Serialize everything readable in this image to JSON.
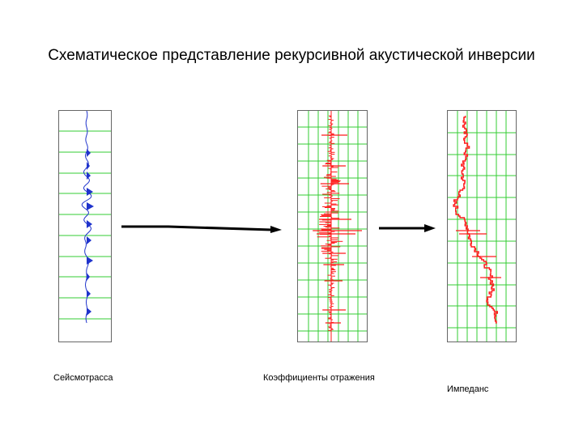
{
  "title": "Схематическое представление рекурсивной акустической инверсии",
  "captions": {
    "seismic": "Сейсмотрасса",
    "reflectivity": "Коэффициенты отражения",
    "impedance": "Импеданс"
  },
  "colors": {
    "grid": "#33cc33",
    "seismic": "#1f33cc",
    "reflectivity": "#ff1a1a",
    "impedance": "#ff1a1a",
    "arrow": "#000000"
  }
}
